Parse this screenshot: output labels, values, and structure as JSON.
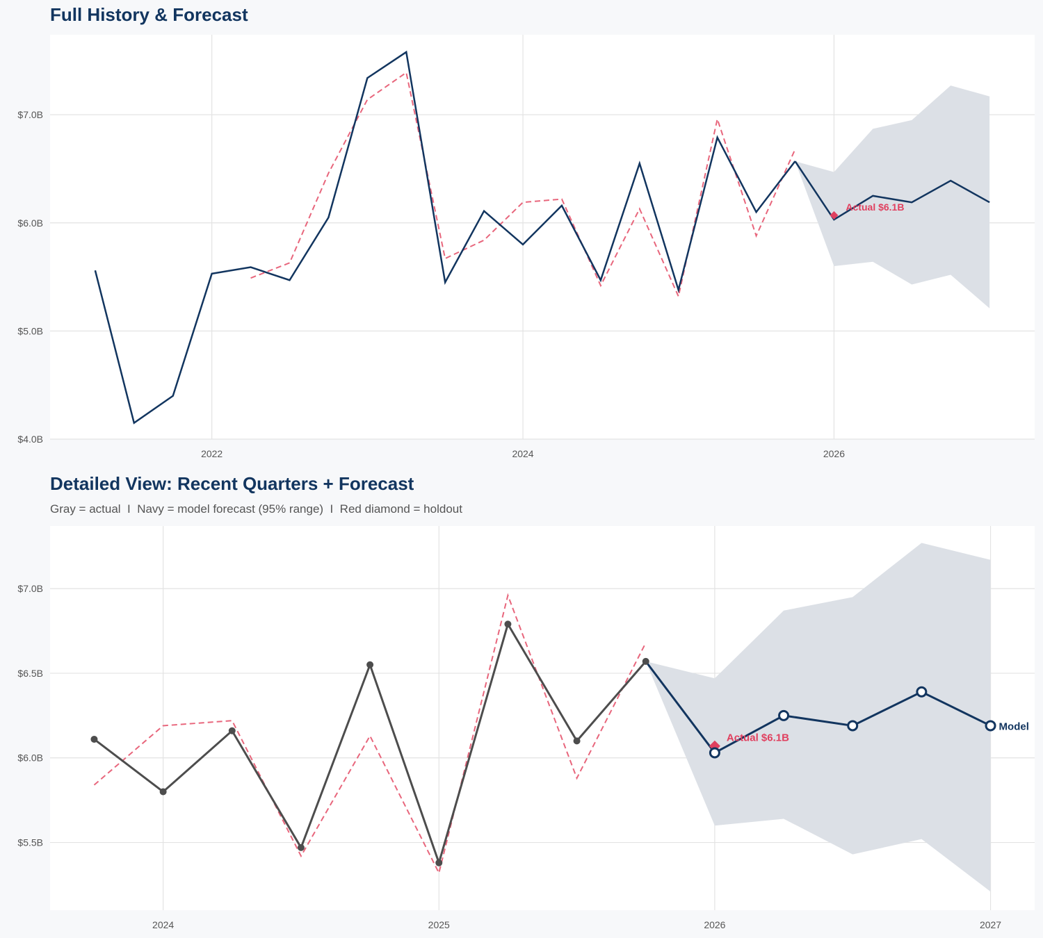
{
  "colors": {
    "navy": "#12355f",
    "gray_actual": "#4d4d4d",
    "fitted_red": "#e8667c",
    "holdout_red": "#e0405f",
    "band": "#dce0e6",
    "grid": "#e3e3e3",
    "panel": "#ffffff",
    "background": "#f7f8fa"
  },
  "chart_data": [
    {
      "type": "line",
      "title": "Full History & Forecast",
      "xlim": [
        2020.96,
        2027.29
      ],
      "ylim": [
        4.0,
        7.74
      ],
      "x_ticks": [
        {
          "value": 2022,
          "label": "2022"
        },
        {
          "value": 2024,
          "label": "2024"
        },
        {
          "value": 2026,
          "label": "2026"
        }
      ],
      "y_ticks": [
        {
          "value": 4,
          "label": "$4.0B"
        },
        {
          "value": 5,
          "label": "$5.0B"
        },
        {
          "value": 6,
          "label": "$6.0B"
        },
        {
          "value": 7,
          "label": "$7.0B"
        }
      ],
      "grid": true,
      "markers": false,
      "annotations": [
        {
          "text": "Actual $6.1B",
          "x": "2026-01-01",
          "y": 6.07
        }
      ]
    },
    {
      "type": "line",
      "title": "Detailed View: Recent Quarters + Forecast",
      "subtitle": "Gray = actual  I  Navy = model forecast (95% range)  I  Red diamond = holdout",
      "xlim": [
        2023.59,
        2027.16
      ],
      "ylim": [
        5.1,
        7.37
      ],
      "start_date": "2023-10-01",
      "x_ticks": [
        {
          "value": 2024,
          "label": "2024"
        },
        {
          "value": 2025,
          "label": "2025"
        },
        {
          "value": 2026,
          "label": "2026"
        },
        {
          "value": 2027,
          "label": "2027"
        }
      ],
      "y_ticks": [
        {
          "value": 5.5,
          "label": "$5.5B"
        },
        {
          "value": 6.0,
          "label": "$6.0B"
        },
        {
          "value": 6.5,
          "label": "$6.5B"
        },
        {
          "value": 7.0,
          "label": "$7.0B"
        }
      ],
      "grid": true,
      "markers": true,
      "annotations": [
        {
          "text": "Actual $6.1B",
          "x": "2026-01-01",
          "y": 6.07
        },
        {
          "text": "Model",
          "x": "2027-01-01",
          "y": 6.19
        }
      ]
    }
  ],
  "series": {
    "actual": {
      "x": [
        "2021-04-01",
        "2021-07-01",
        "2021-10-01",
        "2022-01-01",
        "2022-04-01",
        "2022-07-01",
        "2022-10-01",
        "2023-01-01",
        "2023-04-01",
        "2023-07-01",
        "2023-10-01",
        "2024-01-01",
        "2024-04-01",
        "2024-07-01",
        "2024-10-01",
        "2025-01-01",
        "2025-04-01",
        "2025-07-01",
        "2025-10-01"
      ],
      "y": [
        5.56,
        4.15,
        4.4,
        5.53,
        5.59,
        5.47,
        6.05,
        7.34,
        7.58,
        5.45,
        6.11,
        5.8,
        6.16,
        5.47,
        6.55,
        5.38,
        6.79,
        6.1,
        6.57
      ]
    },
    "fitted": {
      "x": [
        "2022-04-01",
        "2022-07-01",
        "2022-10-01",
        "2023-01-01",
        "2023-04-01",
        "2023-07-01",
        "2023-10-01",
        "2024-01-01",
        "2024-04-01",
        "2024-07-01",
        "2024-10-01",
        "2025-01-01",
        "2025-04-01",
        "2025-07-01",
        "2025-10-01"
      ],
      "y": [
        5.49,
        5.63,
        6.46,
        7.14,
        7.39,
        5.67,
        5.84,
        6.19,
        6.22,
        5.42,
        6.13,
        5.32,
        6.96,
        5.88,
        6.68
      ]
    },
    "forecast": {
      "x": [
        "2026-01-01",
        "2026-04-01",
        "2026-07-01",
        "2026-10-01",
        "2027-01-01"
      ],
      "y": [
        6.03,
        6.25,
        6.19,
        6.39,
        6.19
      ],
      "upper": [
        6.47,
        6.87,
        6.95,
        7.27,
        7.17
      ],
      "lower": [
        5.6,
        5.64,
        5.43,
        5.52,
        5.21
      ],
      "interval": "95%"
    },
    "holdout": {
      "x": "2026-01-01",
      "y": 6.07
    }
  }
}
